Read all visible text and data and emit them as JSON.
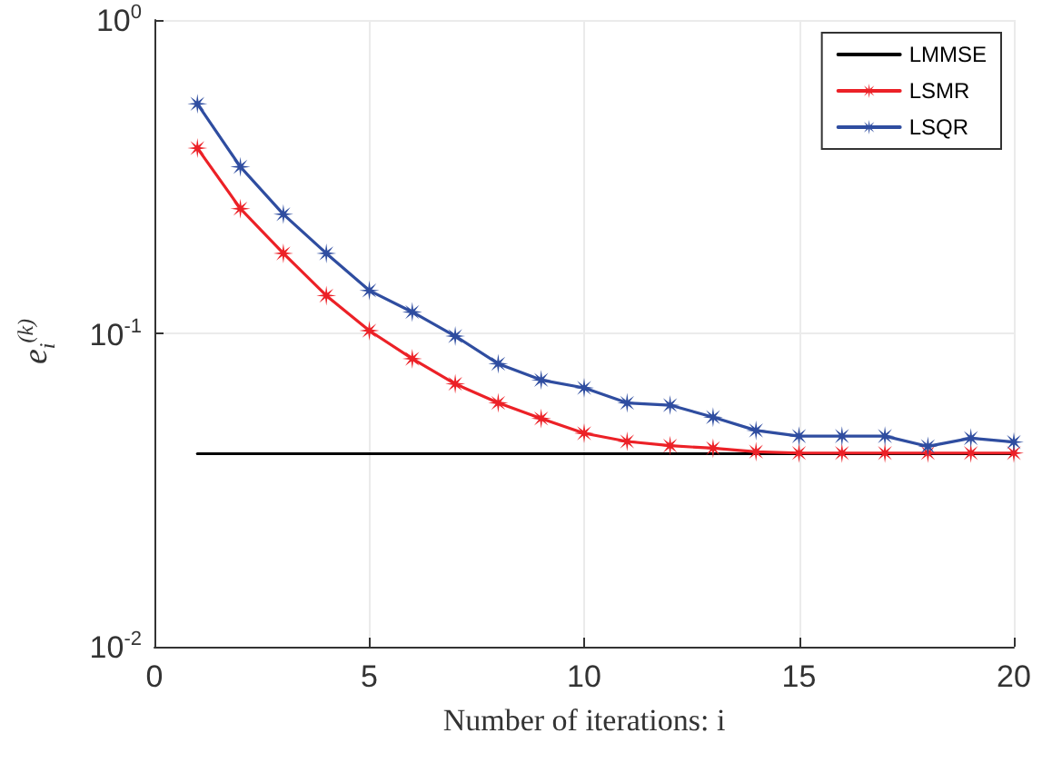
{
  "chart_data": {
    "type": "line",
    "xlabel": "Number of iterations: i",
    "ylabel": "e$_{i}$$^{(k)}$",
    "log": "y",
    "grid": true,
    "legend": "top right",
    "line_style": "solid",
    "xlim": [
      0,
      20
    ],
    "xticks": [
      0,
      5,
      10,
      15,
      20
    ],
    "ylim": [
      0.01,
      1
    ],
    "yticks": [
      {
        "value": 0.01,
        "label": "10$^{-2}$"
      },
      {
        "value": 0.1,
        "label": "10$^{-1}$"
      },
      {
        "value": 1,
        "label": "10$^{0}$"
      }
    ],
    "series": [
      {
        "name": "LMMSE",
        "color": "#000000",
        "marker": "none",
        "x": [
          1,
          20
        ],
        "values": [
          0.0413,
          0.0413
        ]
      },
      {
        "name": "LSMR",
        "color": "#ec2127",
        "marker": "star",
        "x": [
          1,
          2,
          3,
          4,
          5,
          6,
          7,
          8,
          9,
          10,
          11,
          12,
          13,
          14,
          15,
          16,
          17,
          18,
          19,
          20
        ],
        "values": [
          0.39,
          0.25,
          0.18,
          0.132,
          0.102,
          0.083,
          0.069,
          0.06,
          0.0535,
          0.048,
          0.0452,
          0.0438,
          0.043,
          0.0419,
          0.0415,
          0.0415,
          0.0415,
          0.0415,
          0.0415,
          0.0415
        ]
      },
      {
        "name": "LSQR",
        "color": "#2f4da0",
        "marker": "star",
        "x": [
          1,
          2,
          3,
          4,
          5,
          6,
          7,
          8,
          9,
          10,
          11,
          12,
          13,
          14,
          15,
          16,
          17,
          18,
          19,
          20
        ],
        "values": [
          0.54,
          0.34,
          0.24,
          0.18,
          0.137,
          0.117,
          0.098,
          0.08,
          0.071,
          0.067,
          0.06,
          0.059,
          0.054,
          0.049,
          0.047,
          0.047,
          0.047,
          0.0436,
          0.0463,
          0.045
        ]
      }
    ]
  }
}
